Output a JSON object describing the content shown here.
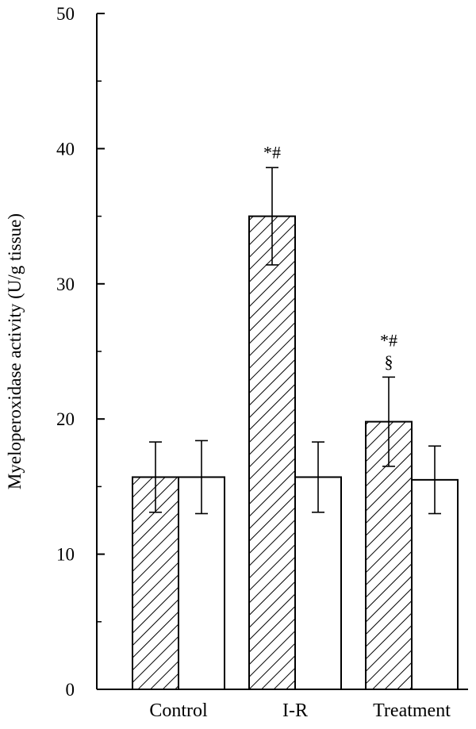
{
  "chart_data": {
    "type": "bar",
    "title": "",
    "xlabel": "",
    "ylabel": "Myeloperoxidase activity (U/g tissue)",
    "ylim": [
      0,
      50
    ],
    "yticks": [
      0,
      10,
      20,
      30,
      40,
      50
    ],
    "minor_yticks": [
      5,
      15,
      25,
      35,
      45
    ],
    "categories": [
      "Control",
      "I-R",
      "Treatment"
    ],
    "series": [
      {
        "fill": "hatched",
        "values": [
          15.7,
          35.0,
          19.8
        ],
        "error": [
          2.6,
          3.6,
          3.3
        ]
      },
      {
        "fill": "white",
        "values": [
          15.7,
          15.7,
          15.5
        ],
        "error": [
          2.7,
          2.6,
          2.5
        ]
      }
    ],
    "annotations": [
      {
        "category": "I-R",
        "series": 0,
        "lines": [
          "*#"
        ]
      },
      {
        "category": "Treatment",
        "series": 0,
        "lines": [
          "*#",
          "§"
        ]
      }
    ],
    "grid": false,
    "legend": "none"
  },
  "colors": {
    "line": "#000000",
    "background": "#ffffff"
  }
}
